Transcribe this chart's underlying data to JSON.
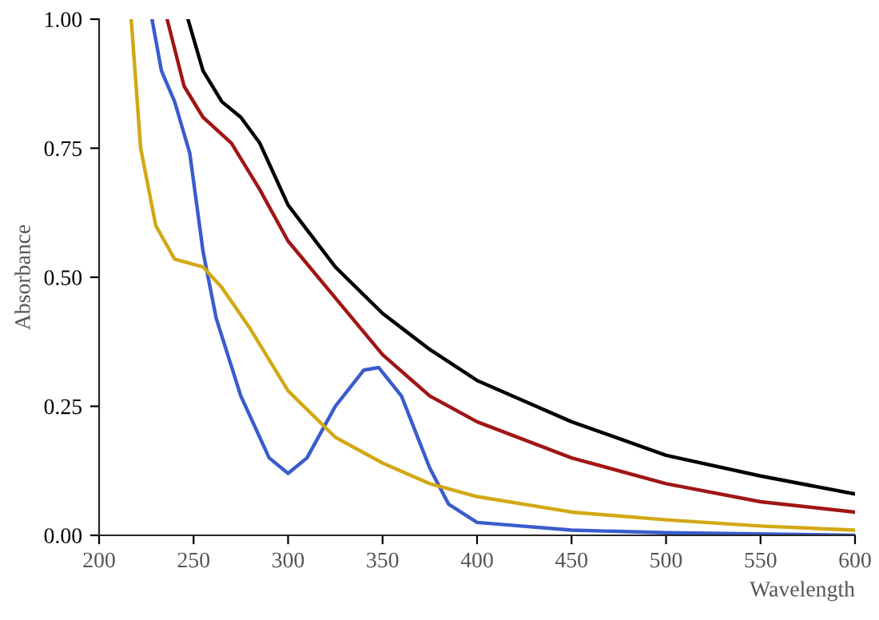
{
  "chart_data": {
    "type": "line",
    "xlabel": "Wavelength",
    "ylabel": "Absorbance",
    "xlim": [
      200,
      600
    ],
    "xticks": [
      200,
      250,
      300,
      350,
      400,
      450,
      500,
      550,
      600
    ],
    "ylim": [
      0,
      1
    ],
    "yticks": [
      {
        "value": 0,
        "label": "0.00"
      },
      {
        "value": 0.25,
        "label": "0.25"
      },
      {
        "value": 0.5,
        "label": "0.50"
      },
      {
        "value": 0.75,
        "label": "0.75"
      },
      {
        "value": 1,
        "label": "1.00"
      }
    ],
    "grid": false,
    "marker": "none",
    "line_style": "solid",
    "series": [
      {
        "color": "#000000",
        "x": [
          247,
          255,
          265,
          275,
          285,
          300,
          325,
          350,
          375,
          400,
          450,
          500,
          550,
          600
        ],
        "values": [
          1.0,
          0.9,
          0.84,
          0.81,
          0.76,
          0.64,
          0.52,
          0.43,
          0.36,
          0.3,
          0.22,
          0.155,
          0.115,
          0.08
        ]
      },
      {
        "color": "#a01515",
        "x": [
          236,
          245,
          255,
          270,
          285,
          300,
          325,
          350,
          375,
          400,
          450,
          500,
          550,
          600
        ],
        "values": [
          1.0,
          0.87,
          0.81,
          0.76,
          0.67,
          0.57,
          0.46,
          0.35,
          0.27,
          0.22,
          0.15,
          0.1,
          0.065,
          0.045
        ]
      },
      {
        "color": "#3a5ccc",
        "x": [
          228,
          233,
          240,
          248,
          255,
          262,
          275,
          290,
          300,
          310,
          325,
          340,
          348,
          360,
          375,
          385,
          400,
          450,
          500,
          600
        ],
        "values": [
          1.0,
          0.9,
          0.84,
          0.74,
          0.55,
          0.42,
          0.27,
          0.15,
          0.12,
          0.15,
          0.25,
          0.32,
          0.325,
          0.27,
          0.13,
          0.06,
          0.025,
          0.01,
          0.005,
          0.0
        ]
      },
      {
        "color": "#d2a814",
        "x": [
          217,
          222,
          230,
          240,
          255,
          265,
          280,
          300,
          325,
          350,
          375,
          400,
          450,
          500,
          550,
          600
        ],
        "values": [
          1.0,
          0.75,
          0.6,
          0.535,
          0.52,
          0.48,
          0.4,
          0.28,
          0.19,
          0.14,
          0.1,
          0.075,
          0.045,
          0.03,
          0.018,
          0.01
        ]
      }
    ]
  }
}
